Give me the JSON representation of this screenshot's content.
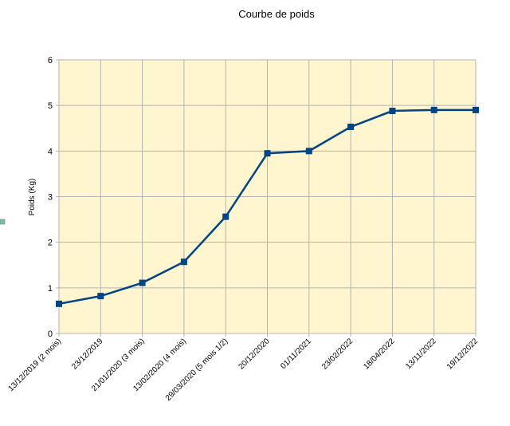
{
  "chart_data": {
    "type": "line",
    "title": "Courbe de poids",
    "y_label": "Poids (Kg)",
    "categories": [
      "13/12/2019 (2 mois)",
      "23/12/2019",
      "21/01/2020 (3 mois)",
      "13/02/2020 (4 mois)",
      "29/03/2020 (5 mois 1/2)",
      "20/12/2020",
      "01/11/2021",
      "23/02/2022",
      "18/04/2022",
      "13/11/2022",
      "19/12/2022"
    ],
    "values": [
      0.65,
      0.82,
      1.11,
      1.57,
      2.56,
      3.95,
      4.0,
      4.53,
      4.88,
      4.9,
      4.9
    ],
    "color": "#004586",
    "ylim": [
      0,
      6
    ],
    "yticks": [
      0,
      1,
      2,
      3,
      4,
      5,
      6
    ],
    "grid": true
  }
}
